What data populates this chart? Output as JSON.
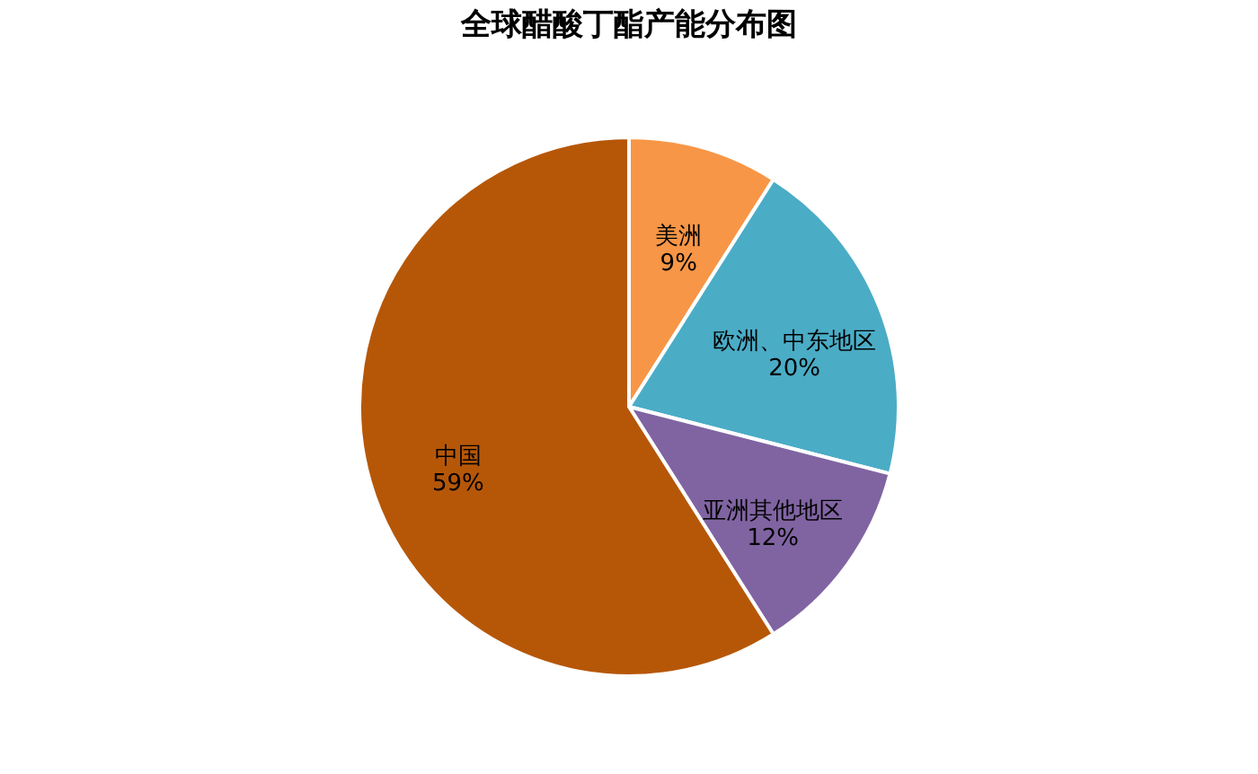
{
  "chart_data": {
    "type": "pie",
    "title": "全球醋酸丁酯产能分布图",
    "categories": [
      "美洲",
      "欧洲、中东地区",
      "亚洲其他地区",
      "中国"
    ],
    "values": [
      9,
      20,
      12,
      59
    ],
    "colors": [
      "#f79646",
      "#4bacc6",
      "#8064a2",
      "#b65708"
    ],
    "value_labels": [
      "9%",
      "20%",
      "12%",
      "59%"
    ],
    "legend": false
  }
}
